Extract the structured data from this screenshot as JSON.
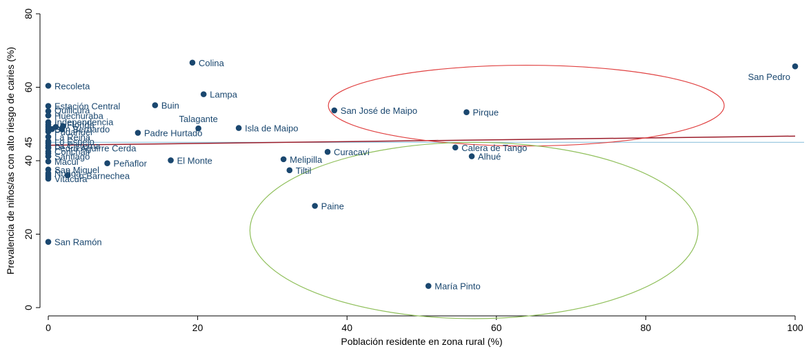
{
  "chart_data": {
    "type": "scatter",
    "xlabel": "Población residente en zona rural (%)",
    "ylabel": "Prevalencia de niños/as con alto riesgo de caries (%)",
    "xlim": [
      0,
      100
    ],
    "ylim": [
      0,
      80
    ],
    "xticks": [
      0,
      20,
      40,
      60,
      80,
      100
    ],
    "yticks": [
      0,
      20,
      40,
      60,
      80
    ],
    "ref_line": {
      "value": 45,
      "label": "45",
      "color": "#9ecae1"
    },
    "fit_line": {
      "x": [
        0,
        100
      ],
      "y": [
        44.2,
        46.7
      ],
      "color": "#9b1c2a"
    },
    "grid": false,
    "legend": "none",
    "marker_color": "#1a476f",
    "points": [
      {
        "label": "Colina",
        "x": 19.3,
        "y": 66.7
      },
      {
        "label": "San Pedro",
        "x": 100,
        "y": 65.7
      },
      {
        "label": "Recoleta",
        "x": 0,
        "y": 60.4
      },
      {
        "label": "Lampa",
        "x": 20.8,
        "y": 58.1
      },
      {
        "label": "Buin",
        "x": 14.3,
        "y": 55.1
      },
      {
        "label": "Estación Central",
        "x": 0,
        "y": 54.9
      },
      {
        "label": "San José de Maipo",
        "x": 38.3,
        "y": 53.7
      },
      {
        "label": "Pirque",
        "x": 56,
        "y": 53.2
      },
      {
        "label": "Huechuraba",
        "x": 0,
        "y": 52.3
      },
      {
        "label": "Talagante",
        "x": 20.1,
        "y": 48.8
      },
      {
        "label": "Isla de Maipo",
        "x": 25.5,
        "y": 48.9
      },
      {
        "label": "Padre Hurtado",
        "x": 12,
        "y": 47.6
      },
      {
        "label": "La Reina",
        "x": 0,
        "y": 46.5
      },
      {
        "label": "La Cisterna",
        "x": 0,
        "y": 44.1
      },
      {
        "label": "Pedro Aguirre Cerda",
        "x": 0,
        "y": 43.5
      },
      {
        "label": "Curacaví",
        "x": 37.4,
        "y": 42.4
      },
      {
        "label": "Calera de Tango",
        "x": 54.5,
        "y": 43.6
      },
      {
        "label": "Alhué",
        "x": 56.7,
        "y": 41.2
      },
      {
        "label": "Santiago",
        "x": 0,
        "y": 41.2
      },
      {
        "label": "Melipilla",
        "x": 31.5,
        "y": 40.4
      },
      {
        "label": "El Monte",
        "x": 16.4,
        "y": 40.1
      },
      {
        "label": "Peñaflor",
        "x": 7.9,
        "y": 39.3
      },
      {
        "label": "Macul",
        "x": 0,
        "y": 39.8
      },
      {
        "label": "Tiltil",
        "x": 32.3,
        "y": 37.4
      },
      {
        "label": "San Miguel",
        "x": 0,
        "y": 37.6
      },
      {
        "label": "Lo Barnechea",
        "x": 2.6,
        "y": 36
      },
      {
        "label": "Vitacura",
        "x": 0,
        "y": 35.1
      },
      {
        "label": "Paine",
        "x": 35.7,
        "y": 27.7
      },
      {
        "label": "San Ramón",
        "x": 0,
        "y": 17.9
      },
      {
        "label": "María Pinto",
        "x": 50.9,
        "y": 5.9
      }
    ],
    "extra_labels": [
      {
        "label": "Quilicura",
        "x": 0,
        "y": 53.8
      },
      {
        "label": "Independencia",
        "x": 0,
        "y": 50.6
      },
      {
        "label": "La Florida",
        "x": 0,
        "y": 49.9
      },
      {
        "label": "San Bernardo",
        "x": 0,
        "y": 48.6
      },
      {
        "label": "Pudahuel",
        "x": 0,
        "y": 47.9
      },
      {
        "label": "Lo Espejo",
        "x": 0,
        "y": 45.3
      },
      {
        "label": "Conchalí",
        "x": 0,
        "y": 42.5
      },
      {
        "label": "Ñuñoa",
        "x": 0,
        "y": 36.6
      }
    ],
    "extra_points": [
      {
        "x": 0,
        "y": 53.5
      },
      {
        "x": 0,
        "y": 52.3
      },
      {
        "x": 0,
        "y": 50.5
      },
      {
        "x": 0,
        "y": 49.8
      },
      {
        "x": 0,
        "y": 49.2
      },
      {
        "x": 0,
        "y": 48.6
      },
      {
        "x": 0,
        "y": 47.9
      },
      {
        "x": 0.5,
        "y": 48.6
      },
      {
        "x": 1,
        "y": 49.2
      },
      {
        "x": 1.8,
        "y": 48.6
      },
      {
        "x": 2,
        "y": 49.4
      },
      {
        "x": 0,
        "y": 45.3
      },
      {
        "x": 0,
        "y": 44.8
      },
      {
        "x": 0,
        "y": 43.5
      },
      {
        "x": 0,
        "y": 42.5
      },
      {
        "x": 0,
        "y": 42
      },
      {
        "x": 0,
        "y": 41.2
      },
      {
        "x": 0,
        "y": 36.6
      },
      {
        "x": 0,
        "y": 36.1
      },
      {
        "x": 0,
        "y": 35.6
      }
    ],
    "ellipses": [
      {
        "name": "rural-high",
        "color": "#e04040",
        "cx": 64,
        "cy": 55,
        "rx": 26.5,
        "ry": 11
      },
      {
        "name": "rural-low",
        "color": "#8fbf5a",
        "cx": 57,
        "cy": 21,
        "rx": 30,
        "ry": 24
      }
    ]
  }
}
